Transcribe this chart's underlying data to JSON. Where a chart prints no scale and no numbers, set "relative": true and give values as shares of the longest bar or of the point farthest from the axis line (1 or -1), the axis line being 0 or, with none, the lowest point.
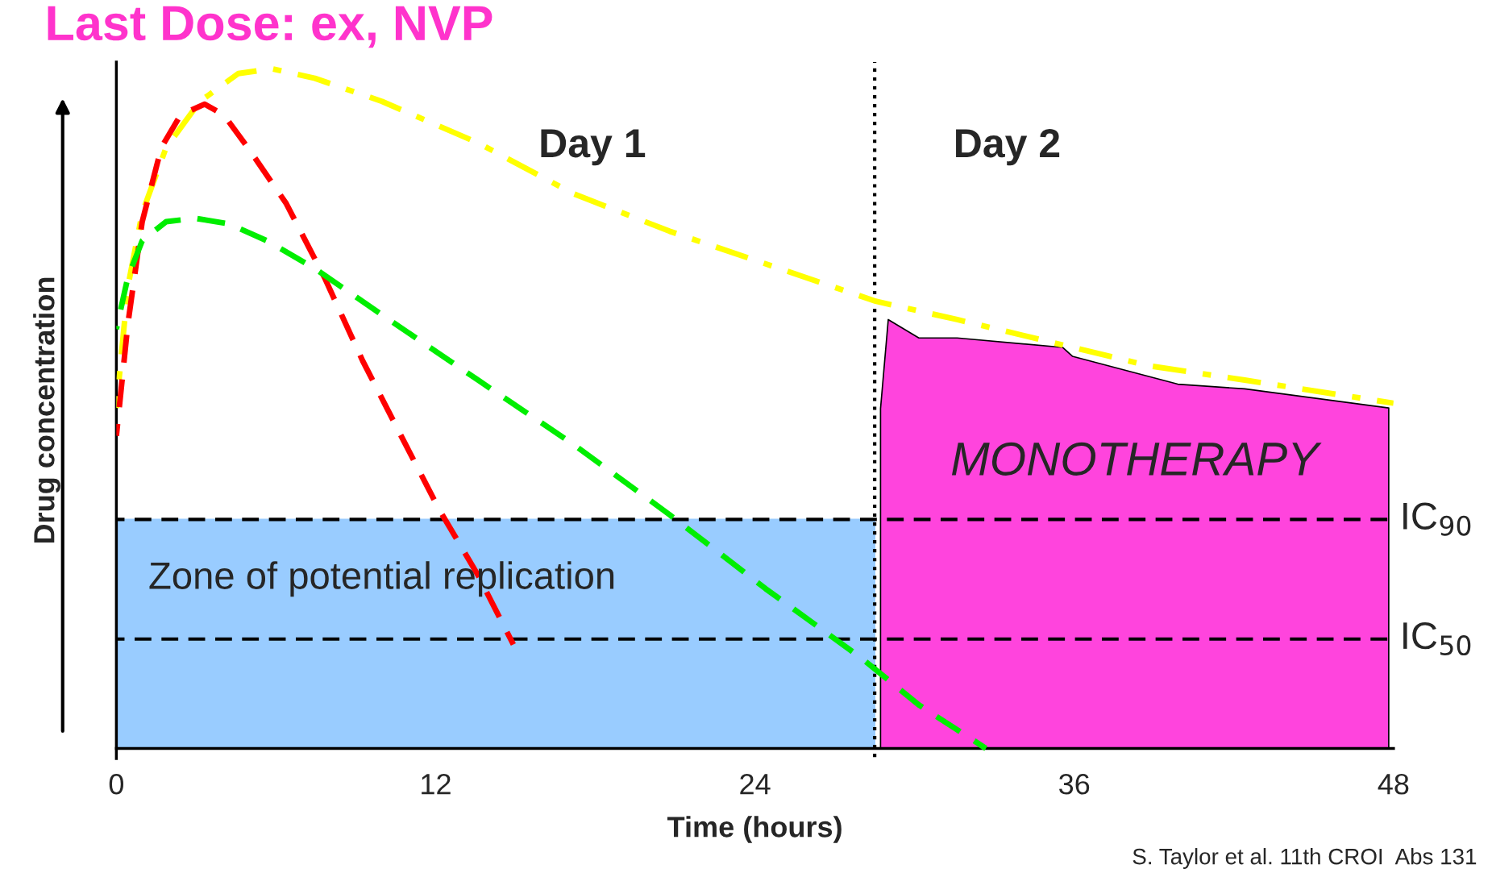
{
  "chart_data": {
    "type": "line",
    "title": "Last Dose: ex, NVP",
    "xlabel": "Time (hours)",
    "ylabel": "Drug concentration",
    "relative": true,
    "legend": false,
    "grid": false,
    "xlim": [
      0,
      48
    ],
    "xticks": [
      0,
      12,
      24,
      36,
      48
    ],
    "series": [
      {
        "type": "area",
        "name": "Zone of potential replication",
        "color": "#99ccff",
        "x": [
          0,
          28.5
        ],
        "values": [
          0.337,
          0.337
        ]
      },
      {
        "type": "area",
        "name": "MONOTHERAPY",
        "color": "#ff44dd",
        "x": [
          28.72,
          29.01,
          30.16,
          31.6,
          35.57,
          35.93,
          39.89,
          42.41,
          47.82
        ],
        "values": [
          0.5,
          0.631,
          0.604,
          0.604,
          0.59,
          0.577,
          0.536,
          0.529,
          0.501
        ]
      },
      {
        "color": "#ffff00",
        "line_style": "dashdot",
        "x": [
          0,
          0.43,
          0.97,
          1.87,
          3.14,
          4.58,
          5.84,
          7.46,
          9.98,
          13.59,
          17.19,
          20.79,
          24.4,
          28.54,
          31.6,
          35.21,
          38.81,
          42.41,
          48
        ],
        "values": [
          0.501,
          0.679,
          0.788,
          0.884,
          0.952,
          0.993,
          1,
          0.986,
          0.952,
          0.891,
          0.816,
          0.761,
          0.713,
          0.658,
          0.631,
          0.597,
          0.563,
          0.542,
          0.508
        ]
      },
      {
        "color": "#ff0000",
        "line_style": "dashed",
        "x": [
          0,
          0.43,
          0.97,
          1.69,
          2.41,
          3.32,
          4.04,
          4.94,
          6.38,
          7.82,
          9.26,
          10.7,
          12.14,
          13.59,
          14.92
        ],
        "values": [
          0.46,
          0.624,
          0.775,
          0.884,
          0.932,
          0.948,
          0.932,
          0.884,
          0.802,
          0.693,
          0.57,
          0.46,
          0.351,
          0.255,
          0.153
        ]
      },
      {
        "color": "#00ee00",
        "line_style": "dashed",
        "x": [
          0,
          0.43,
          0.97,
          1.87,
          2.96,
          4.22,
          5.66,
          7.46,
          9.98,
          13.59,
          17.19,
          20.79,
          24.4,
          28.0,
          30.16,
          32.68
        ],
        "values": [
          0.617,
          0.693,
          0.747,
          0.775,
          0.78,
          0.772,
          0.747,
          0.706,
          0.638,
          0.542,
          0.447,
          0.344,
          0.235,
          0.133,
          0.064,
          0.0
        ]
      }
    ],
    "ref_lines": [
      {
        "axis": "y",
        "value": 0.337,
        "label": "IC$_{90}$",
        "color": "#000000",
        "line_style": "dashed"
      },
      {
        "axis": "y",
        "value": 0.161,
        "label": "IC$_{50}$",
        "color": "#000000",
        "line_style": "dashed"
      },
      {
        "axis": "x",
        "value": 28.5,
        "color": "#000000",
        "line_style": "dotted"
      }
    ],
    "annotations": [
      "Day 1",
      "Day 2",
      "S. Taylor et al. 11th CROI  Abs 131"
    ]
  }
}
